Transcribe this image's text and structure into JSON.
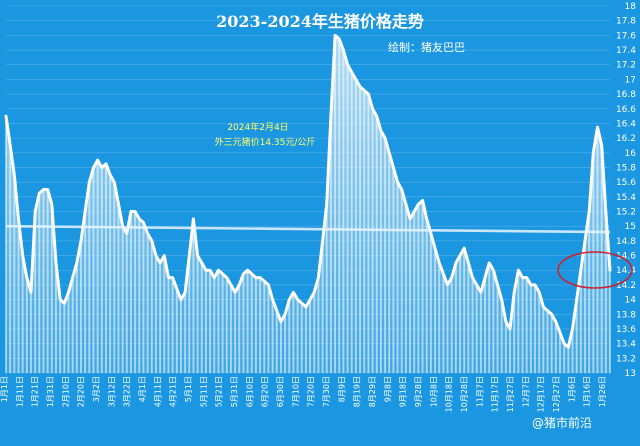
{
  "chart_data": {
    "type": "line",
    "title": "2023-2024年生猪价格走势",
    "credit": "绘制：猪友巴巴",
    "annotation": [
      "2024年2月4日",
      "外三元猪价14.35元/公斤"
    ],
    "watermark": "@猪市前沿",
    "y_axis": {
      "ylim": [
        13,
        18
      ],
      "position": "right",
      "ticks": [
        "18",
        "17.8",
        "17.6",
        "17.4",
        "17.2",
        "17",
        "16.8",
        "16.6",
        "16.4",
        "16.2",
        "16",
        "15.8",
        "15.6",
        "15.4",
        "15.2",
        "15",
        "14.8",
        "14.6",
        "14.4",
        "14.2",
        "14",
        "13.8",
        "13.6",
        "13.4",
        "13.2",
        "13"
      ]
    },
    "x_axis": {
      "ticks": [
        "1月1日",
        "1月11日",
        "1月21日",
        "1月31日",
        "2月10日",
        "2月20日",
        "3月2日",
        "3月12日",
        "3月22日",
        "4月1日",
        "4月11日",
        "4月21日",
        "5月1日",
        "5月11日",
        "5月21日",
        "5月31日",
        "6月10日",
        "6月20日",
        "6月30日",
        "7月10日",
        "7月20日",
        "7月30日",
        "8月9日",
        "8月19日",
        "8月29日",
        "9月8日",
        "9月18日",
        "9月28日",
        "10月8日",
        "10月18日",
        "10月28日",
        "11月7日",
        "11月17日",
        "11月27日",
        "12月7日",
        "12月17日",
        "12月27日",
        "1月6日",
        "1月16日",
        "1月26日"
      ]
    },
    "series": [
      {
        "values": [
          16.5,
          16.1,
          15.7,
          15.1,
          14.6,
          14.3,
          14.1,
          15.2,
          15.45,
          15.5,
          15.5,
          15.3,
          14.5,
          14.0,
          13.95,
          14.1,
          14.3,
          14.5,
          14.8,
          15.2,
          15.6,
          15.8,
          15.9,
          15.8,
          15.85,
          15.7,
          15.6,
          15.3,
          15.0,
          14.9,
          15.2,
          15.2,
          15.1,
          15.05,
          14.9,
          14.8,
          14.6,
          14.5,
          14.6,
          14.3,
          14.3,
          14.15,
          14.0,
          14.1,
          14.6,
          15.1,
          14.6,
          14.5,
          14.4,
          14.4,
          14.3,
          14.4,
          14.35,
          14.3,
          14.2,
          14.1,
          14.2,
          14.35,
          14.4,
          14.35,
          14.3,
          14.3,
          14.25,
          14.2,
          14.0,
          13.85,
          13.7,
          13.8,
          14.0,
          14.1,
          14.0,
          13.95,
          13.9,
          14.0,
          14.1,
          14.3,
          14.8,
          15.3,
          16.5,
          17.6,
          17.55,
          17.4,
          17.2,
          17.1,
          17.0,
          16.9,
          16.85,
          16.8,
          16.6,
          16.5,
          16.3,
          16.2,
          16.0,
          15.8,
          15.6,
          15.5,
          15.3,
          15.1,
          15.2,
          15.3,
          15.35,
          15.1,
          14.9,
          14.7,
          14.5,
          14.35,
          14.2,
          14.3,
          14.5,
          14.6,
          14.7,
          14.5,
          14.3,
          14.2,
          14.1,
          14.3,
          14.5,
          14.4,
          14.2,
          14.0,
          13.7,
          13.6,
          14.1,
          14.4,
          14.3,
          14.3,
          14.2,
          14.2,
          14.1,
          13.9,
          13.85,
          13.8,
          13.7,
          13.55,
          13.4,
          13.35,
          13.6,
          14.0,
          14.4,
          14.8,
          15.2,
          16.0,
          16.35,
          16.1,
          15.2,
          14.4
        ]
      }
    ],
    "reference_line": [
      15.0,
      14.92
    ]
  }
}
